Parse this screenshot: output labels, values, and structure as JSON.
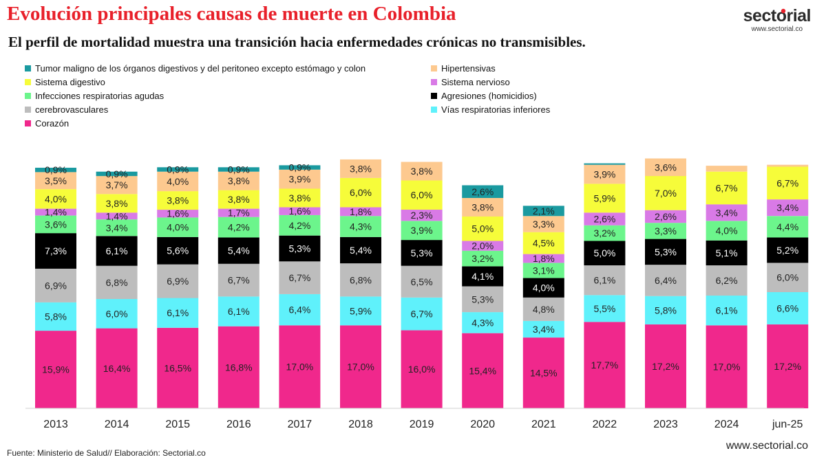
{
  "header": {
    "title": "Evolución principales causas de muerte en Colombia",
    "subtitle": "El perfil de mortalidad muestra una transición hacia enfermedades crónicas no transmisibles."
  },
  "logo": {
    "name": "sectorial",
    "url": "www.sectorial.co",
    "accent_color": "#e8202a"
  },
  "footer": {
    "source": "Fuente: Ministerio de Salud// Elaboración: Sectorial.co",
    "url": "www.sectorial.co"
  },
  "chart_data": {
    "type": "bar",
    "stacked": true,
    "categories": [
      "2013",
      "2014",
      "2015",
      "2016",
      "2017",
      "2018",
      "2019",
      "2020",
      "2021",
      "2022",
      "2023",
      "2024",
      "jun-25"
    ],
    "series": [
      {
        "name": "Corazón",
        "color": "#f0288c",
        "text_color": "#222",
        "values": [
          15.9,
          16.4,
          16.5,
          16.8,
          17.0,
          17.0,
          16.0,
          15.4,
          14.5,
          17.7,
          17.2,
          17.0,
          17.2
        ],
        "labels": [
          "15,9%",
          "16,4%",
          "16,5%",
          "16,8%",
          "17,0%",
          "17,0%",
          "16,0%",
          "15,4%",
          "14,5%",
          "17,7%",
          "17,2%",
          "17,0%",
          "17,2%"
        ]
      },
      {
        "name": "Vías respiratorias inferiores",
        "color": "#5ff1fb",
        "text_color": "#222",
        "values": [
          5.8,
          6.0,
          6.1,
          6.1,
          6.4,
          5.9,
          6.7,
          4.3,
          3.4,
          5.5,
          5.8,
          6.1,
          6.6
        ],
        "labels": [
          "5,8%",
          "6,0%",
          "6,1%",
          "6,1%",
          "6,4%",
          "5,9%",
          "6,7%",
          "4,3%",
          "3,4%",
          "5,5%",
          "5,8%",
          "6,1%",
          "6,6%"
        ]
      },
      {
        "name": "cerebrovasculares",
        "color": "#bdbdbd",
        "text_color": "#222",
        "values": [
          6.9,
          6.8,
          6.9,
          6.7,
          6.7,
          6.8,
          6.5,
          5.3,
          4.8,
          6.1,
          6.4,
          6.2,
          6.0
        ],
        "labels": [
          "6,9%",
          "6,8%",
          "6,9%",
          "6,7%",
          "6,7%",
          "6,8%",
          "6,5%",
          "5,3%",
          "4,8%",
          "6,1%",
          "6,4%",
          "6,2%",
          "6,0%"
        ]
      },
      {
        "name": "Agresiones (homicidios)",
        "color": "#000000",
        "text_color": "#ffffff",
        "values": [
          7.3,
          6.1,
          5.6,
          5.4,
          5.3,
          5.4,
          5.3,
          4.1,
          4.0,
          5.0,
          5.3,
          5.1,
          5.2
        ],
        "labels": [
          "7,3%",
          "6,1%",
          "5,6%",
          "5,4%",
          "5,3%",
          "5,4%",
          "5,3%",
          "4,1%",
          "4,0%",
          "5,0%",
          "5,3%",
          "5,1%",
          "5,2%"
        ]
      },
      {
        "name": "Infecciones respiratorias agudas",
        "color": "#6cf58c",
        "text_color": "#222",
        "values": [
          3.6,
          3.4,
          4.0,
          4.2,
          4.2,
          4.3,
          3.9,
          3.2,
          3.1,
          3.2,
          3.3,
          4.0,
          4.4
        ],
        "labels": [
          "3,6%",
          "3,4%",
          "4,0%",
          "4,2%",
          "4,2%",
          "4,3%",
          "3,9%",
          "3,2%",
          "3,1%",
          "3,2%",
          "3,3%",
          "4,0%",
          "4,4%"
        ]
      },
      {
        "name": "Sistema nervioso",
        "color": "#d97ae6",
        "text_color": "#222",
        "values": [
          1.4,
          1.4,
          1.6,
          1.7,
          1.6,
          1.8,
          2.3,
          2.0,
          1.8,
          2.6,
          2.6,
          3.4,
          3.4
        ],
        "labels": [
          "1,4%",
          "1,4%",
          "1,6%",
          "1,7%",
          "1,6%",
          "1,8%",
          "2,3%",
          "2,0%",
          "1,8%",
          "2,6%",
          "2,6%",
          "3,4%",
          "3,4%"
        ]
      },
      {
        "name": "Sistema digestivo",
        "color": "#f6fc3a",
        "text_color": "#222",
        "values": [
          4.0,
          3.8,
          3.8,
          3.8,
          3.8,
          6.0,
          6.0,
          5.0,
          4.5,
          5.9,
          7.0,
          6.7,
          6.7
        ],
        "labels": [
          "4,0%",
          "3,8%",
          "3,8%",
          "3,8%",
          "3,8%",
          "6,0%",
          "6,0%",
          "5,0%",
          "4,5%",
          "5,9%",
          "7,0%",
          "6,7%",
          "6,7%"
        ]
      },
      {
        "name": "Hipertensivas",
        "color": "#fdc98f",
        "text_color": "#222",
        "values": [
          3.5,
          3.7,
          4.0,
          3.8,
          3.9,
          3.8,
          3.8,
          3.8,
          3.3,
          3.9,
          3.6,
          1.2,
          0.4
        ],
        "labels": [
          "3,5%",
          "3,7%",
          "4,0%",
          "3,8%",
          "3,9%",
          "3,8%",
          "3,8%",
          "3,8%",
          "3,3%",
          "3,9%",
          "3,6%",
          "",
          ""
        ]
      },
      {
        "name": "Tumor maligno de los órganos digestivos y del peritoneo excepto estómago y colon",
        "color": "#1a9aa0",
        "text_color": "#222",
        "values": [
          0.9,
          0.9,
          0.9,
          0.9,
          0.9,
          0,
          0,
          2.6,
          2.1,
          0.3,
          0,
          0,
          0
        ],
        "labels": [
          "0,9%",
          "0,9%",
          "0,9%",
          "0,9%",
          "0,9%",
          "",
          "",
          "2,6%",
          "2,1%",
          "",
          "",
          "",
          ""
        ]
      }
    ],
    "legend": {
      "placement": "top-left",
      "order": [
        8,
        7,
        6,
        5,
        4,
        3,
        2,
        1,
        0
      ]
    },
    "grid": false,
    "xlabel": "",
    "ylabel": ""
  }
}
